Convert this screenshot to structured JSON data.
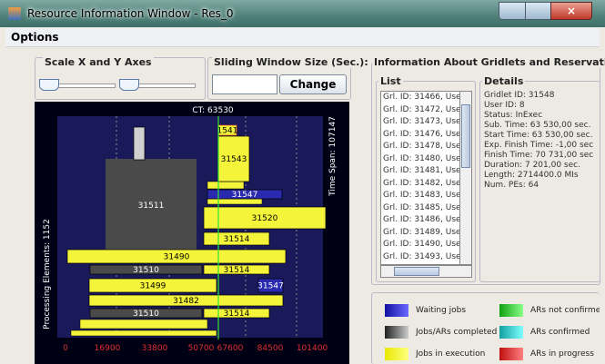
{
  "window": {
    "title": "Resource Information Window - Res_0"
  },
  "menu": {
    "items": [
      "Options"
    ]
  },
  "controls": {
    "scale_title": "Scale X and Y Axes",
    "window_size_title": "Sliding Window Size (Sec.):",
    "change_button": "Change"
  },
  "chart": {
    "ct_label": "CT: 63530",
    "time_span_label": "Time Span: 107147",
    "pe_label": "Processing Elements: 1152",
    "x_labels": [
      "0",
      "16900",
      "33800",
      "50700",
      "67600",
      "84500",
      "101400"
    ],
    "bars": [
      "1541",
      "31511",
      "31543",
      "31547",
      "31520",
      "31514",
      "31490",
      "31514",
      "31499",
      "31547",
      "31482",
      "31514",
      "31510",
      "31510"
    ]
  },
  "info": {
    "title": "Information About Gridlets and Reservations",
    "list_title": "List",
    "list_items": [
      "Grl. ID: 31466, User:",
      "Grl. ID: 31472, User:",
      "Grl. ID: 31473, User:",
      "Grl. ID: 31476, User:",
      "Grl. ID: 31478, User:",
      "Grl. ID: 31480, User:",
      "Grl. ID: 31481, User:",
      "Grl. ID: 31482, User:",
      "Grl. ID: 31483, User:",
      "Grl. ID: 31485, User:",
      "Grl. ID: 31486, User:",
      "Grl. ID: 31489, User:",
      "Grl. ID: 31490, User:",
      "Grl. ID: 31493, User:"
    ],
    "details_title": "Details",
    "details": [
      "Gridlet ID: 31548",
      "User ID: 8",
      "Status: InExec",
      "Sub. Time: 63 530,00 sec.",
      "Start Time: 63 530,00 sec.",
      "Exp. Finish Time: -1,00 sec",
      "Finish Time: 70 731,00 sec",
      "Duration: 7 201,00 sec.",
      "Length: 2714400.0 MIs",
      "Num. PEs: 64"
    ]
  },
  "legend": {
    "items": [
      "Waiting jobs",
      "Jobs/ARs completed",
      "Jobs in execution",
      "ARs not confirmed",
      "ARs confirmed",
      "ARs in progress"
    ]
  }
}
